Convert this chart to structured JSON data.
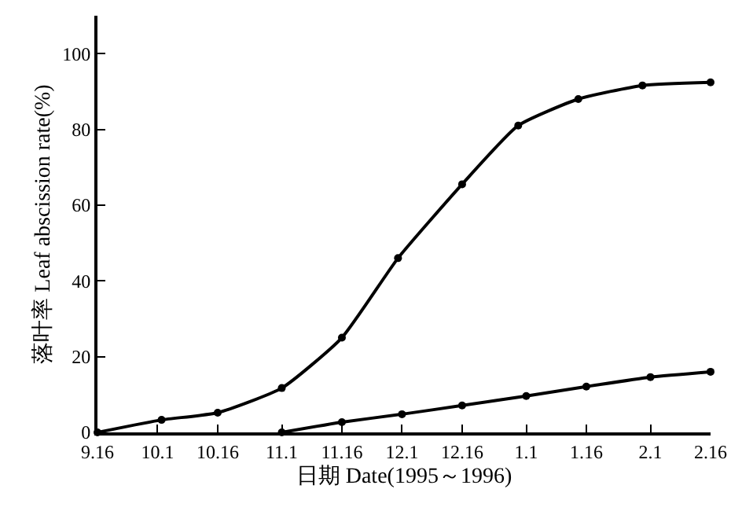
{
  "chart_data": {
    "type": "line",
    "xlabel": "日期 Date(1995～1996)",
    "ylabel": "落叶率 Leaf abscission rate(%)",
    "series": [
      {
        "color": "#000000",
        "x": [
          "1995-09-16",
          "1995-10-02",
          "1995-10-16",
          "1995-11-01",
          "1995-11-16",
          "1995-11-30",
          "1995-12-16",
          "1995-12-30",
          "1996-01-14",
          "1996-01-30",
          "1996-02-16"
        ],
        "values": [
          0,
          3.3,
          5.2,
          11.7,
          25,
          46,
          65.5,
          81,
          88,
          91.6,
          92.4
        ]
      },
      {
        "color": "#000000",
        "x": [
          "1995-11-01",
          "1995-11-16",
          "1995-12-01",
          "1995-12-16",
          "1996-01-01",
          "1996-01-16",
          "1996-02-01",
          "1996-02-16"
        ],
        "values": [
          0,
          2.7,
          4.8,
          7.1,
          9.6,
          12.1,
          14.6,
          16
        ]
      }
    ],
    "xlim": [
      "1995-09-16",
      "1996-02-16"
    ],
    "xticks": [
      {
        "value": "1995-09-16",
        "label": "9.16"
      },
      {
        "value": "1995-10-01",
        "label": "10.1"
      },
      {
        "value": "1995-10-16",
        "label": "10.16"
      },
      {
        "value": "1995-11-01",
        "label": "11.1"
      },
      {
        "value": "1995-11-16",
        "label": "11.16"
      },
      {
        "value": "1995-12-01",
        "label": "12.1"
      },
      {
        "value": "1995-12-16",
        "label": "12.16"
      },
      {
        "value": "1996-01-01",
        "label": "1.1"
      },
      {
        "value": "1996-01-16",
        "label": "1.16"
      },
      {
        "value": "1996-02-01",
        "label": "2.1"
      },
      {
        "value": "1996-02-16",
        "label": "2.16"
      }
    ],
    "ylim": [
      0,
      110
    ],
    "yticks": [
      0,
      20,
      40,
      60,
      80,
      100
    ],
    "legend": false,
    "marker": "circle",
    "line_style": "solid"
  }
}
